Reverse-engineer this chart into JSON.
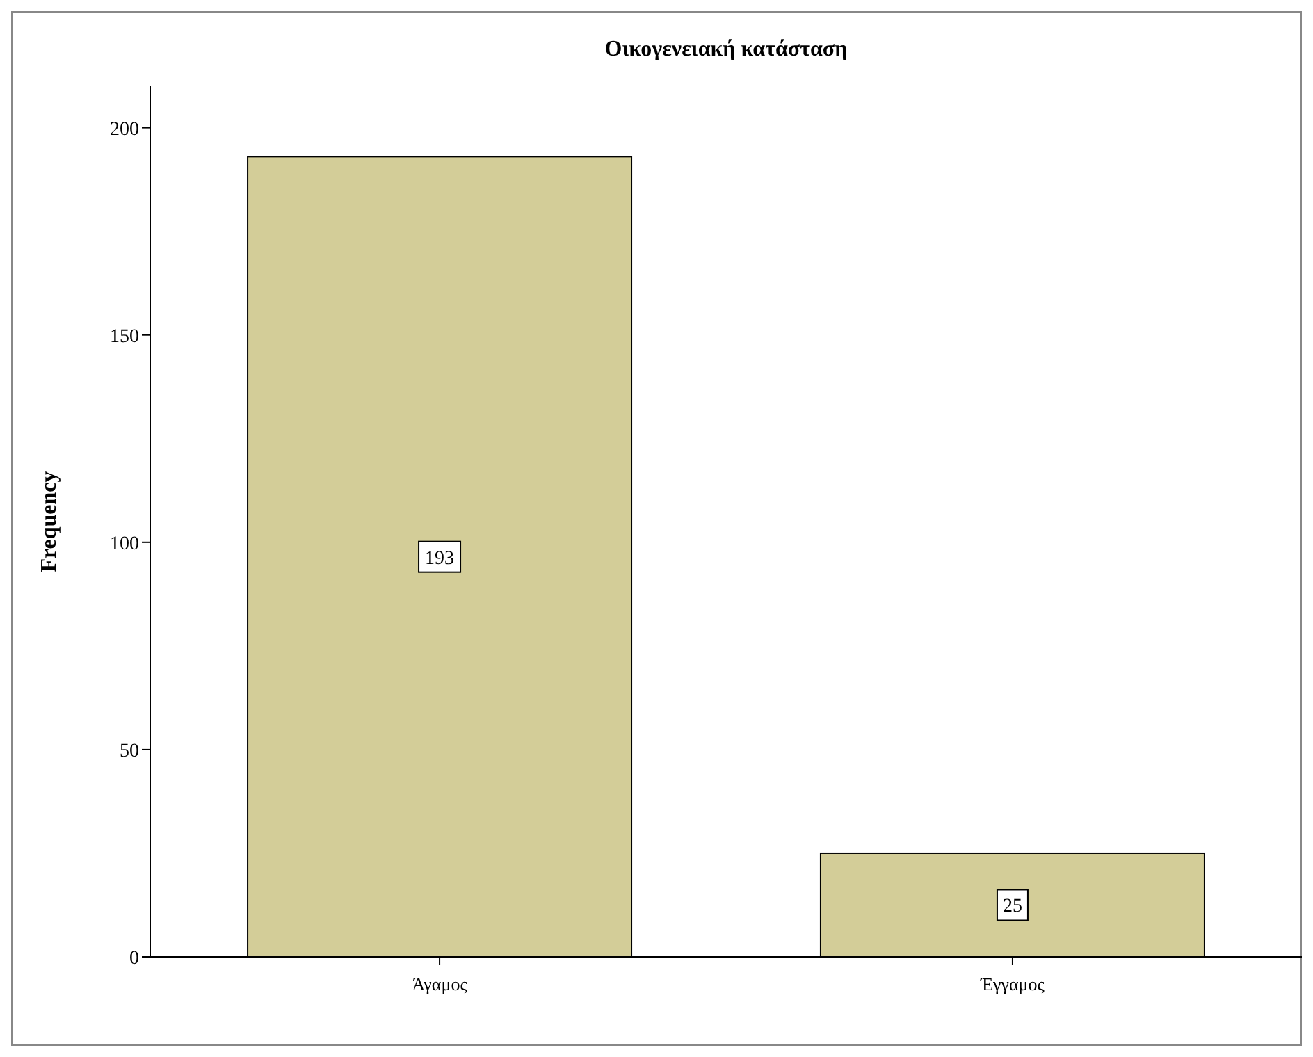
{
  "chart_data": {
    "type": "bar",
    "title": "Οικογενειακή κατάσταση",
    "ylabel": "Frequency",
    "categories": [
      "Άγαμος",
      "Έγγαμος"
    ],
    "values": [
      193,
      25
    ],
    "color": "#d3cd98",
    "ylim": [
      0,
      210
    ],
    "yticks": [
      0,
      50,
      100,
      150,
      200
    ],
    "data_labels": true,
    "grid": false
  }
}
